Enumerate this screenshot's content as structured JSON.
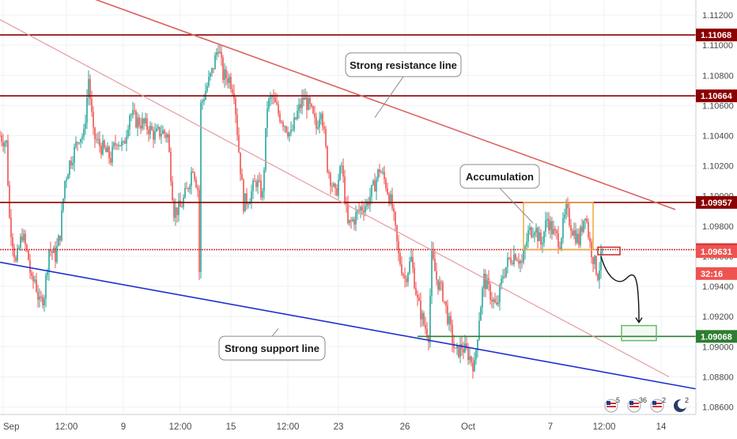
{
  "chart_data": {
    "type": "candlestick",
    "title": "",
    "xlabel": "",
    "ylabel": "",
    "ylim": [
      1.0855,
      1.113
    ],
    "grid": true,
    "y_ticks": [
      "1.11200",
      "1.11000",
      "1.10800",
      "1.10600",
      "1.10400",
      "1.10200",
      "1.10000",
      "1.09800",
      "1.09600",
      "1.09400",
      "1.09200",
      "1.09000",
      "1.08800",
      "1.08600"
    ],
    "y_tick_values": [
      1.112,
      1.11,
      1.108,
      1.106,
      1.104,
      1.102,
      1.1,
      1.098,
      1.096,
      1.094,
      1.092,
      1.09,
      1.088,
      1.086
    ],
    "x_ticks": [
      "Sep",
      "12:00",
      "9",
      "12:00",
      "15",
      "12:00",
      "23",
      "26",
      "Oct",
      "7",
      "12:00",
      "14"
    ],
    "x_tick_index": [
      2,
      42,
      78,
      114,
      146,
      182,
      214,
      256,
      296,
      348,
      382,
      418
    ],
    "horizontal_levels": [
      {
        "label": "1.11068",
        "value": 1.11068,
        "color": "#8b0000"
      },
      {
        "label": "1.10664",
        "value": 1.10664,
        "color": "#8b0000"
      },
      {
        "label": "1.09957",
        "value": 1.09957,
        "color": "#8b0000"
      },
      {
        "label": "1.09644",
        "value": 1.09644,
        "color": "#d43a3a"
      },
      {
        "label": "1.09068",
        "value": 1.09068,
        "color": "#2e7d32"
      }
    ],
    "price_badges": [
      {
        "label": "1.09631",
        "value": 1.09631
      },
      {
        "label": "32:16",
        "value": 1.09485
      }
    ],
    "trendlines": [
      {
        "name": "resistance",
        "points": [
          [
            56,
            1.1132
          ],
          [
            427,
            1.0991
          ]
        ],
        "color": "#d9625e"
      },
      {
        "name": "mid",
        "points": [
          [
            0,
            1.1117
          ],
          [
            423,
            1.088
          ]
        ],
        "color": "#e89aa0"
      },
      {
        "name": "support",
        "points": [
          [
            0,
            1.0956
          ],
          [
            440,
            1.0872
          ]
        ],
        "color": "#1f2fd0"
      }
    ],
    "annotations": [
      {
        "text": "Strong resistance line",
        "x": 255,
        "y": 1.1087
      },
      {
        "text": "Accumulation",
        "x": 316,
        "y": 1.1013
      },
      {
        "text": "Strong support line",
        "x": 172,
        "y": 1.0899
      }
    ],
    "zones": [
      {
        "name": "accumulation",
        "x0": 331,
        "x1": 375,
        "y0": 1.09644,
        "y1": 1.09957,
        "color": "#f2a93b"
      },
      {
        "name": "sell-entry",
        "x0": 378,
        "x1": 392,
        "y0": 1.0961,
        "y1": 1.0966,
        "color": "#c62828"
      },
      {
        "name": "target",
        "x0": 393,
        "x1": 415,
        "y0": 1.0904,
        "y1": 1.0914,
        "color": "#66bb6a"
      }
    ],
    "series": [
      {
        "values": [
          [
            0,
            1.104
          ],
          [
            4,
            1.1035
          ],
          [
            6,
            1.0985
          ],
          [
            10,
            1.0955
          ],
          [
            14,
            1.0975
          ],
          [
            18,
            1.0958
          ],
          [
            20,
            1.0942
          ],
          [
            22,
            1.0945
          ],
          [
            25,
            1.0928
          ],
          [
            28,
            1.0935
          ],
          [
            31,
            1.0965
          ],
          [
            35,
            1.096
          ],
          [
            38,
            1.0975
          ],
          [
            41,
            1.101
          ],
          [
            44,
            1.1022
          ],
          [
            47,
            1.103
          ],
          [
            50,
            1.104
          ],
          [
            53,
            1.104
          ],
          [
            56,
            1.1078
          ],
          [
            59,
            1.104
          ],
          [
            62,
            1.1035
          ],
          [
            66,
            1.103
          ],
          [
            70,
            1.1025
          ],
          [
            74,
            1.1038
          ],
          [
            78,
            1.1032
          ],
          [
            82,
            1.1055
          ],
          [
            86,
            1.105
          ],
          [
            90,
            1.1048
          ],
          [
            94,
            1.1045
          ],
          [
            98,
            1.104
          ],
          [
            102,
            1.1043
          ],
          [
            106,
            1.104
          ],
          [
            110,
            1.099
          ],
          [
            114,
            1.0992
          ],
          [
            118,
            1.1003
          ],
          [
            122,
            1.102
          ],
          [
            125,
            1.1005
          ],
          [
            126,
            1.095
          ],
          [
            127,
            1.106
          ],
          [
            130,
            1.107
          ],
          [
            134,
            1.1082
          ],
          [
            138,
            1.11
          ],
          [
            141,
            1.108
          ],
          [
            145,
            1.1078
          ],
          [
            148,
            1.107
          ],
          [
            151,
            1.103
          ],
          [
            154,
            1.0995
          ],
          [
            158,
            1.1
          ],
          [
            162,
            1.101
          ],
          [
            166,
            1.1
          ],
          [
            169,
            1.106
          ],
          [
            172,
            1.1065
          ],
          [
            176,
            1.1055
          ],
          [
            180,
            1.1048
          ],
          [
            184,
            1.104
          ],
          [
            188,
            1.1055
          ],
          [
            192,
            1.1065
          ],
          [
            196,
            1.1058
          ],
          [
            200,
            1.1045
          ],
          [
            203,
            1.106
          ],
          [
            207,
            1.102
          ],
          [
            212,
            1.1
          ],
          [
            216,
            1.102
          ],
          [
            220,
            1.098
          ],
          [
            224,
            1.0985
          ],
          [
            228,
            1.0992
          ],
          [
            232,
            1.0995
          ],
          [
            236,
            1.1005
          ],
          [
            240,
            1.1018
          ],
          [
            244,
            1.1008
          ],
          [
            248,
            1.0992
          ],
          [
            252,
            1.096
          ],
          [
            256,
            1.0945
          ],
          [
            260,
            1.0958
          ],
          [
            264,
            1.093
          ],
          [
            268,
            1.0915
          ],
          [
            271,
            1.0908
          ],
          [
            273,
            1.096
          ],
          [
            276,
            1.0945
          ],
          [
            280,
            1.0935
          ],
          [
            284,
            1.0915
          ],
          [
            288,
            1.0895
          ],
          [
            292,
            1.09
          ],
          [
            296,
            1.0895
          ],
          [
            300,
            1.0887
          ],
          [
            303,
            1.092
          ],
          [
            306,
            1.0945
          ],
          [
            310,
            1.0935
          ],
          [
            314,
            1.0925
          ],
          [
            318,
            1.0948
          ],
          [
            322,
            1.0958
          ],
          [
            326,
            1.0962
          ],
          [
            330,
            1.0955
          ],
          [
            334,
            1.0975
          ],
          [
            338,
            1.098
          ],
          [
            342,
            1.0968
          ],
          [
            346,
            1.0985
          ],
          [
            350,
            1.0975
          ],
          [
            354,
            1.097
          ],
          [
            358,
            1.099
          ],
          [
            362,
            1.0978
          ],
          [
            366,
            1.097
          ],
          [
            370,
            1.099
          ],
          [
            373,
            1.0968
          ],
          [
            376,
            1.0955
          ],
          [
            378,
            1.0948
          ],
          [
            381,
            1.0963
          ]
        ]
      }
    ]
  },
  "badges": [
    {
      "icon": "us-flag-icon",
      "count": "5"
    },
    {
      "icon": "us-flag-icon",
      "count": "36"
    },
    {
      "icon": "us-flag-icon",
      "count": "2"
    },
    {
      "icon": "moon-icon",
      "count": "2"
    }
  ]
}
